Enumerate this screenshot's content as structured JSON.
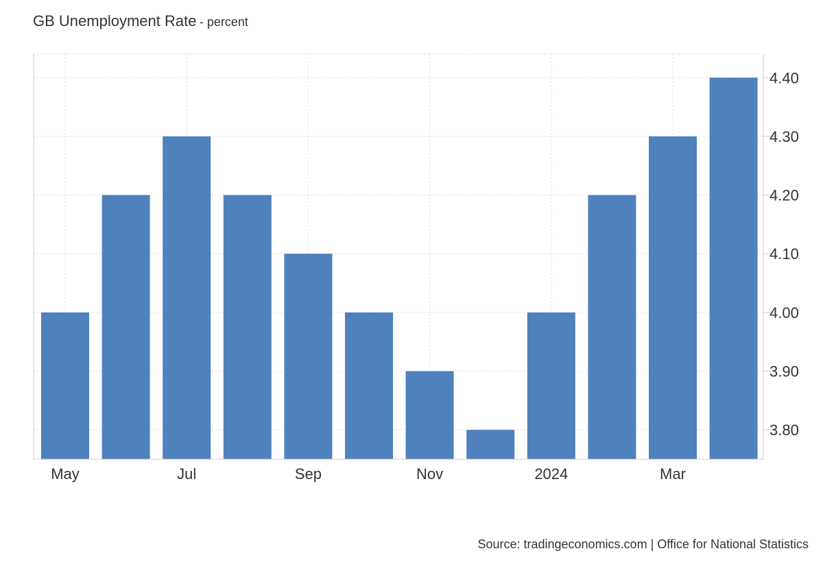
{
  "title": "GB Unemployment Rate",
  "subtitle": "- percent",
  "source": "Source: tradingeconomics.com | Office for National Statistics",
  "colors": {
    "bar": "#4f81bd",
    "grid": "#d9d9d9",
    "axis": "#cccccc",
    "text": "#333333"
  },
  "chart_data": {
    "type": "bar",
    "categories": [
      "2023-05",
      "2023-06",
      "2023-07",
      "2023-08",
      "2023-09",
      "2023-10",
      "2023-11",
      "2023-12",
      "2024-01",
      "2024-02",
      "2024-03",
      "2024-04"
    ],
    "values": [
      4.0,
      4.2,
      4.3,
      4.2,
      4.1,
      4.0,
      3.9,
      3.8,
      4.0,
      4.2,
      4.3,
      4.4
    ],
    "x_tick_labels": [
      "May",
      "Jul",
      "Sep",
      "Nov",
      "2024",
      "Mar"
    ],
    "x_tick_category_index": [
      0,
      2,
      4,
      6,
      8,
      10
    ],
    "y_ticks": [
      3.8,
      3.9,
      4.0,
      4.1,
      4.2,
      4.3,
      4.4
    ],
    "y_tick_labels": [
      "3.80",
      "3.90",
      "4.00",
      "4.10",
      "4.20",
      "4.30",
      "4.40"
    ],
    "ylim": [
      3.75,
      4.44
    ],
    "y_axis_side": "right",
    "grid": true,
    "legend": "none"
  }
}
